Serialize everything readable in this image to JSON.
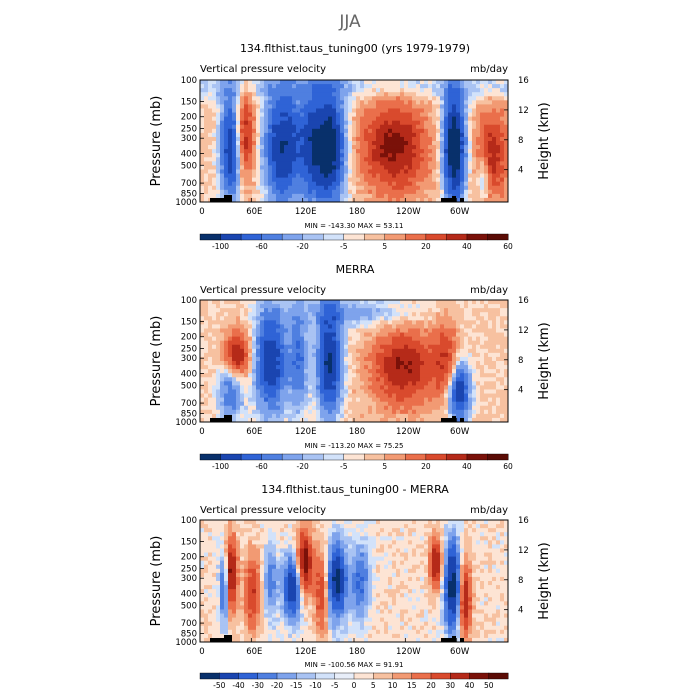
{
  "page_title": "JJA",
  "colors": {
    "cool_scale": [
      "#08306b",
      "#1a45b0",
      "#2f63d6",
      "#4f7fe0",
      "#7ea3ec",
      "#a9c3f3",
      "#d2e2fa"
    ],
    "warm_scale": [
      "#fde4d4",
      "#f7c1a0",
      "#f29a73",
      "#ea6f4b",
      "#d94a2d",
      "#b52a19",
      "#7a1109"
    ],
    "missing": "#000000"
  },
  "chart_data": [
    {
      "type": "heatmap",
      "title": "134.flthist.taus_tuning00 (yrs 1979-1979)",
      "left_label": "Vertical pressure velocity",
      "right_label": "mb/day",
      "ylabel": "Pressure (mb)",
      "ylabel_right": "Height (km)",
      "xticks": [
        "0",
        "60E",
        "120E",
        "180",
        "120W",
        "60W"
      ],
      "yticks": [
        "100",
        "150",
        "200",
        "250",
        "300",
        "400",
        "500",
        "700",
        "850",
        "1000"
      ],
      "yticks_right": [
        "16",
        "12",
        "8",
        "4"
      ],
      "stats": "MIN = -143.30   MAX =   53.11",
      "colorbar_labels": [
        "-100",
        "-60",
        "-20",
        "-5",
        "5",
        "20",
        "40",
        "60"
      ]
    },
    {
      "type": "heatmap",
      "title": "MERRA",
      "left_label": "Vertical pressure velocity",
      "right_label": "mb/day",
      "ylabel": "Pressure (mb)",
      "ylabel_right": "Height (km)",
      "xticks": [
        "0",
        "60E",
        "120E",
        "180",
        "120W",
        "60W"
      ],
      "yticks": [
        "100",
        "150",
        "200",
        "250",
        "300",
        "400",
        "500",
        "700",
        "850",
        "1000"
      ],
      "yticks_right": [
        "16",
        "12",
        "8",
        "4"
      ],
      "stats": "MIN = -113.20   MAX =   75.25",
      "colorbar_labels": [
        "-100",
        "-60",
        "-20",
        "-5",
        "5",
        "20",
        "40",
        "60"
      ]
    },
    {
      "type": "heatmap",
      "title": "134.flthist.taus_tuning00 - MERRA",
      "left_label": "Vertical pressure velocity",
      "right_label": "mb/day",
      "ylabel": "Pressure (mb)",
      "ylabel_right": "Height (km)",
      "xticks": [
        "0",
        "60E",
        "120E",
        "180",
        "120W",
        "60W"
      ],
      "yticks": [
        "100",
        "150",
        "200",
        "250",
        "300",
        "400",
        "500",
        "700",
        "850",
        "1000"
      ],
      "yticks_right": [
        "16",
        "12",
        "8",
        "4"
      ],
      "stats": "MIN = -100.56   MAX =   91.91",
      "colorbar_labels": [
        "-50",
        "-40",
        "-30",
        "-20",
        "-15",
        "-10",
        "-5",
        "0",
        "5",
        "10",
        "15",
        "20",
        "30",
        "40",
        "50"
      ]
    }
  ]
}
